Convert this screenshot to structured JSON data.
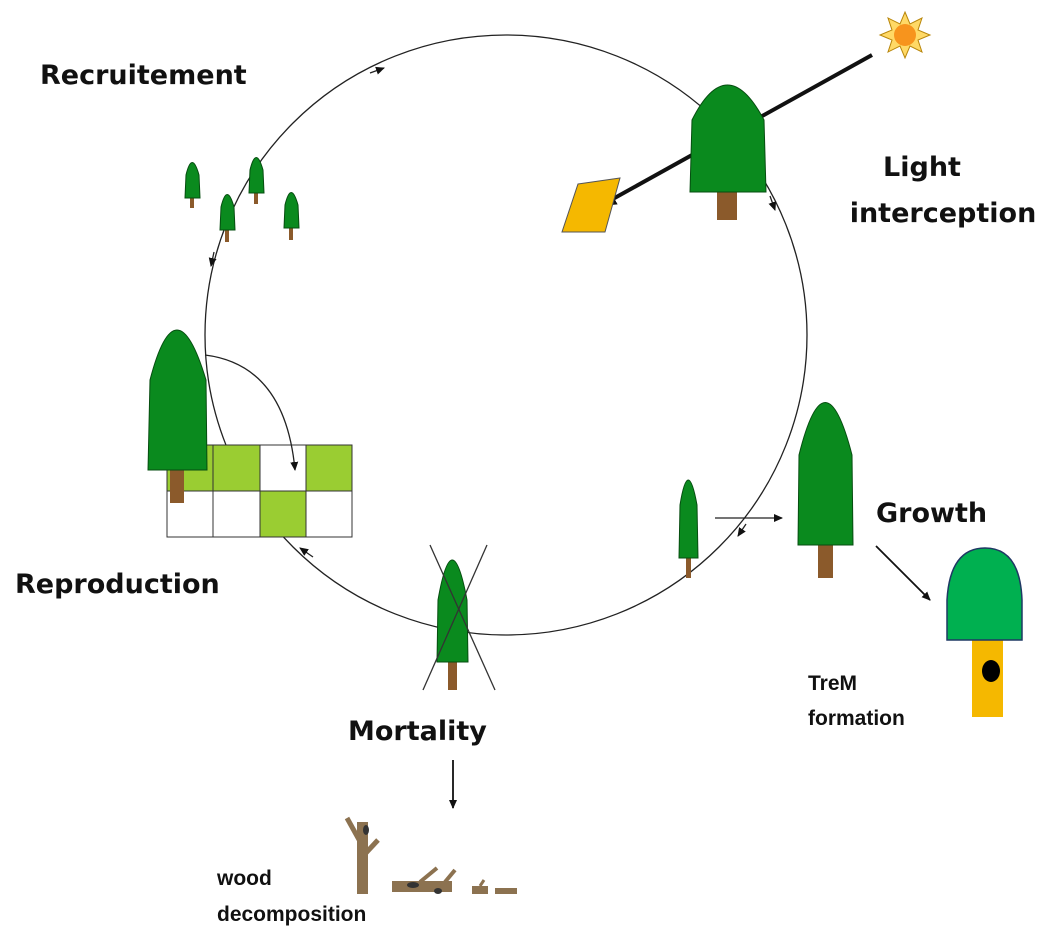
{
  "nodes": [
    {
      "lines": [
        "Recruitement"
      ]
    },
    {
      "lines": [
        "Light",
        "interception"
      ]
    },
    {
      "lines": [
        "Growth"
      ]
    },
    {
      "lines": [
        "TreM",
        "formation"
      ]
    },
    {
      "lines": [
        "Mortality"
      ]
    },
    {
      "lines": [
        "wood",
        "decomposition"
      ]
    },
    {
      "lines": [
        "Reproduction"
      ]
    }
  ]
}
